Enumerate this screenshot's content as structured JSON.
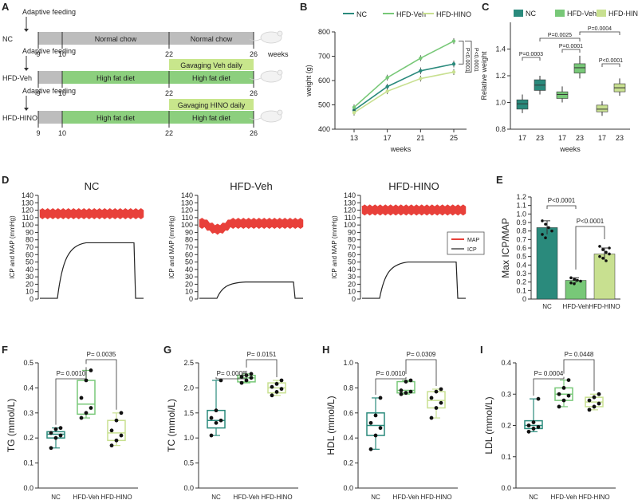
{
  "colors": {
    "nc": "#2a8a7c",
    "veh": "#78c878",
    "hino": "#c8e090",
    "grey": "#bdbdbd",
    "diet_green": "#8ccf7e",
    "gavage_green": "#c8e68c",
    "map_red": "#e8403a",
    "icp_black": "#222222"
  },
  "panel_a": {
    "label": "A",
    "rows": [
      {
        "group": "NC",
        "adaptive": "Adaptive feeding",
        "segment1": "Normal chow",
        "segment2": "Normal chow",
        "gavage": "",
        "ticks": [
          "9",
          "10",
          "22",
          "26"
        ],
        "weeks_label": "weeks"
      },
      {
        "group": "HFD-Veh",
        "adaptive": "Adaptive feeding",
        "segment1": "High fat diet",
        "segment2": "High fat diet",
        "gavage": "Gavaging Veh daily",
        "ticks": [
          "9",
          "10",
          "22",
          "26"
        ],
        "weeks_label": ""
      },
      {
        "group": "HFD-HINO",
        "adaptive": "Adaptive feeding",
        "segment1": "High fat diet",
        "segment2": "High fat diet",
        "gavage": "Gavaging HINO daily",
        "ticks": [
          "9",
          "10",
          "22",
          "26"
        ],
        "weeks_label": ""
      }
    ]
  },
  "chart_data": [
    {
      "panel": "B",
      "type": "line",
      "legend": [
        "NC",
        "HFD-Veh",
        "HFD-HINO"
      ],
      "x": [
        13,
        17,
        21,
        25
      ],
      "series": [
        {
          "name": "NC",
          "values": [
            478,
            575,
            640,
            668
          ],
          "err": [
            12,
            12,
            14,
            14
          ]
        },
        {
          "name": "HFD-Veh",
          "values": [
            490,
            612,
            692,
            762
          ],
          "err": [
            12,
            12,
            12,
            12
          ]
        },
        {
          "name": "HFD-HINO",
          "values": [
            468,
            556,
            608,
            635
          ],
          "err": [
            12,
            12,
            12,
            12
          ]
        }
      ],
      "ylim": [
        400,
        800
      ],
      "yticks": [
        "400",
        "500",
        "600",
        "700",
        "800"
      ],
      "xticks": [
        "13",
        "17",
        "21",
        "25"
      ],
      "ylabel": "weight (g)",
      "xlabel": "weeks",
      "pvalues": [
        "P<0.0001",
        "P<0.0001"
      ]
    },
    {
      "panel": "C",
      "type": "box",
      "legend": [
        "NC",
        "HFD-Veh",
        "HFD-HINO"
      ],
      "categories": [
        "17",
        "23",
        "17",
        "23",
        "17",
        "23"
      ],
      "groups": [
        "NC",
        "NC",
        "HFD-Veh",
        "HFD-Veh",
        "HFD-HINO",
        "HFD-HINO"
      ],
      "boxes": [
        {
          "min": 0.92,
          "q1": 0.95,
          "med": 0.99,
          "q3": 1.02,
          "max": 1.06
        },
        {
          "min": 1.06,
          "q1": 1.09,
          "med": 1.13,
          "q3": 1.17,
          "max": 1.2
        },
        {
          "min": 1.0,
          "q1": 1.03,
          "med": 1.06,
          "q3": 1.08,
          "max": 1.12
        },
        {
          "min": 1.18,
          "q1": 1.22,
          "med": 1.26,
          "q3": 1.29,
          "max": 1.35
        },
        {
          "min": 0.9,
          "q1": 0.93,
          "med": 0.95,
          "q3": 0.98,
          "max": 1.01
        },
        {
          "min": 1.05,
          "q1": 1.08,
          "med": 1.11,
          "q3": 1.14,
          "max": 1.18
        }
      ],
      "ylim": [
        0.8,
        1.6
      ],
      "yticks": [
        "0.8",
        "1.0",
        "1.2",
        "1.4"
      ],
      "ylabel": "Relative weight",
      "xlabel": "weeks",
      "pvalues": [
        "P=0.0003",
        "P=0.0025",
        "P=0.0001",
        "P=0.0004",
        "P<0.0001"
      ]
    },
    {
      "panel": "D",
      "type": "line",
      "titles": [
        "NC",
        "HFD-Veh",
        "HFD-HINO"
      ],
      "ylabel": "ICP and MAP (mmHg)",
      "yticks": [
        "0",
        "10",
        "20",
        "30",
        "40",
        "50",
        "60",
        "70",
        "80",
        "90",
        "100",
        "110",
        "120",
        "130",
        "140"
      ],
      "ylim": [
        0,
        140
      ],
      "legend": [
        "MAP",
        "ICP"
      ],
      "map_level": [
        115,
        102,
        120
      ],
      "icp_plateau": [
        76,
        23,
        50
      ]
    },
    {
      "panel": "E",
      "type": "bar",
      "categories": [
        "NC",
        "HFD-Veh",
        "HFD-HINO"
      ],
      "values": [
        0.84,
        0.22,
        0.53
      ],
      "err": [
        0.08,
        0.03,
        0.07
      ],
      "points": [
        [
          0.92,
          0.88,
          0.84,
          0.8,
          0.76,
          0.72
        ],
        [
          0.25,
          0.23,
          0.22,
          0.21,
          0.19,
          0.18
        ],
        [
          0.62,
          0.58,
          0.55,
          0.53,
          0.5,
          0.48,
          0.45,
          0.6
        ]
      ],
      "ylim": [
        0,
        1.2
      ],
      "yticks": [
        "0",
        "0.1",
        "0.2",
        "0.3",
        "0.4",
        "0.5",
        "0.6",
        "0.7",
        "0.8",
        "0.9",
        "1.0",
        "1.1",
        "1.2"
      ],
      "ylabel": "Max ICP/MAP",
      "pvalues": [
        "P<0.0001",
        "P<0.0001"
      ]
    },
    {
      "panel": "F",
      "type": "box",
      "categories": [
        "NC",
        "HFD-Veh",
        "HFD-HINO"
      ],
      "boxes": [
        {
          "min": 0.16,
          "q1": 0.2,
          "med": 0.215,
          "q3": 0.225,
          "max": 0.24
        },
        {
          "min": 0.28,
          "q1": 0.295,
          "med": 0.335,
          "q3": 0.43,
          "max": 0.47
        },
        {
          "min": 0.17,
          "q1": 0.19,
          "med": 0.22,
          "q3": 0.27,
          "max": 0.3
        }
      ],
      "points": [
        [
          0.16,
          0.2,
          0.21,
          0.22,
          0.235,
          0.24
        ],
        [
          0.28,
          0.3,
          0.32,
          0.36,
          0.43,
          0.47
        ],
        [
          0.17,
          0.19,
          0.21,
          0.23,
          0.27,
          0.3
        ]
      ],
      "ylim": [
        0.0,
        0.5
      ],
      "yticks": [
        "0.0",
        "0.1",
        "0.2",
        "0.3",
        "0.4",
        "0.5"
      ],
      "ylabel": "TG (mmol/L)",
      "pvalues": [
        "P= 0.0010",
        "P= 0.0035"
      ]
    },
    {
      "panel": "G",
      "type": "box",
      "categories": [
        "NC",
        "HFD-Veh",
        "HFD-HINO"
      ],
      "boxes": [
        {
          "min": 1.05,
          "q1": 1.2,
          "med": 1.35,
          "q3": 1.55,
          "max": 2.15
        },
        {
          "min": 2.1,
          "q1": 2.12,
          "med": 2.2,
          "q3": 2.25,
          "max": 2.28
        },
        {
          "min": 1.85,
          "q1": 1.9,
          "med": 2.0,
          "q3": 2.1,
          "max": 2.15
        }
      ],
      "points": [
        [
          1.05,
          1.3,
          1.35,
          1.4,
          1.55,
          2.15
        ],
        [
          2.1,
          2.15,
          2.2,
          2.22,
          2.25,
          2.28
        ],
        [
          1.85,
          1.92,
          1.98,
          2.02,
          2.08,
          2.15
        ]
      ],
      "ylim": [
        0.0,
        2.5
      ],
      "yticks": [
        "0.0",
        "0.5",
        "1.0",
        "1.5",
        "2.0",
        "2.5"
      ],
      "ylabel": "TC (mmol/L)",
      "pvalues": [
        "P= 0.0008",
        "P= 0.0151"
      ]
    },
    {
      "panel": "H",
      "type": "box",
      "categories": [
        "NC",
        "HFD-Veh",
        "HFD-HINO"
      ],
      "boxes": [
        {
          "min": 0.31,
          "q1": 0.42,
          "med": 0.5,
          "q3": 0.6,
          "max": 0.72
        },
        {
          "min": 0.75,
          "q1": 0.76,
          "med": 0.78,
          "q3": 0.85,
          "max": 0.86
        },
        {
          "min": 0.56,
          "q1": 0.64,
          "med": 0.7,
          "q3": 0.77,
          "max": 0.79
        }
      ],
      "points": [
        [
          0.31,
          0.42,
          0.48,
          0.52,
          0.58,
          0.72
        ],
        [
          0.75,
          0.76,
          0.77,
          0.78,
          0.85,
          0.86
        ],
        [
          0.56,
          0.64,
          0.68,
          0.72,
          0.77,
          0.79
        ]
      ],
      "ylim": [
        0.0,
        1.0
      ],
      "yticks": [
        "0.0",
        "0.2",
        "0.4",
        "0.6",
        "0.8",
        "1.0"
      ],
      "ylabel": "HDL (mmol/L)",
      "pvalues": [
        "P= 0.0010",
        "P= 0.0309"
      ]
    },
    {
      "panel": "I",
      "type": "box",
      "categories": [
        "NC",
        "HFD-Veh",
        "HFD-HINO"
      ],
      "boxes": [
        {
          "min": 0.18,
          "q1": 0.19,
          "med": 0.2,
          "q3": 0.215,
          "max": 0.285
        },
        {
          "min": 0.26,
          "q1": 0.28,
          "med": 0.3,
          "q3": 0.32,
          "max": 0.345
        },
        {
          "min": 0.25,
          "q1": 0.26,
          "med": 0.275,
          "q3": 0.29,
          "max": 0.3
        }
      ],
      "points": [
        [
          0.18,
          0.19,
          0.195,
          0.2,
          0.21,
          0.285
        ],
        [
          0.26,
          0.28,
          0.295,
          0.3,
          0.32,
          0.345
        ],
        [
          0.25,
          0.26,
          0.27,
          0.28,
          0.29,
          0.3
        ]
      ],
      "ylim": [
        0.0,
        0.4
      ],
      "yticks": [
        "0.0",
        "0.1",
        "0.2",
        "0.3",
        "0.4"
      ],
      "ylabel": "LDL (mmol/L)",
      "pvalues": [
        "P= 0.0004",
        "P= 0.0448"
      ]
    }
  ]
}
